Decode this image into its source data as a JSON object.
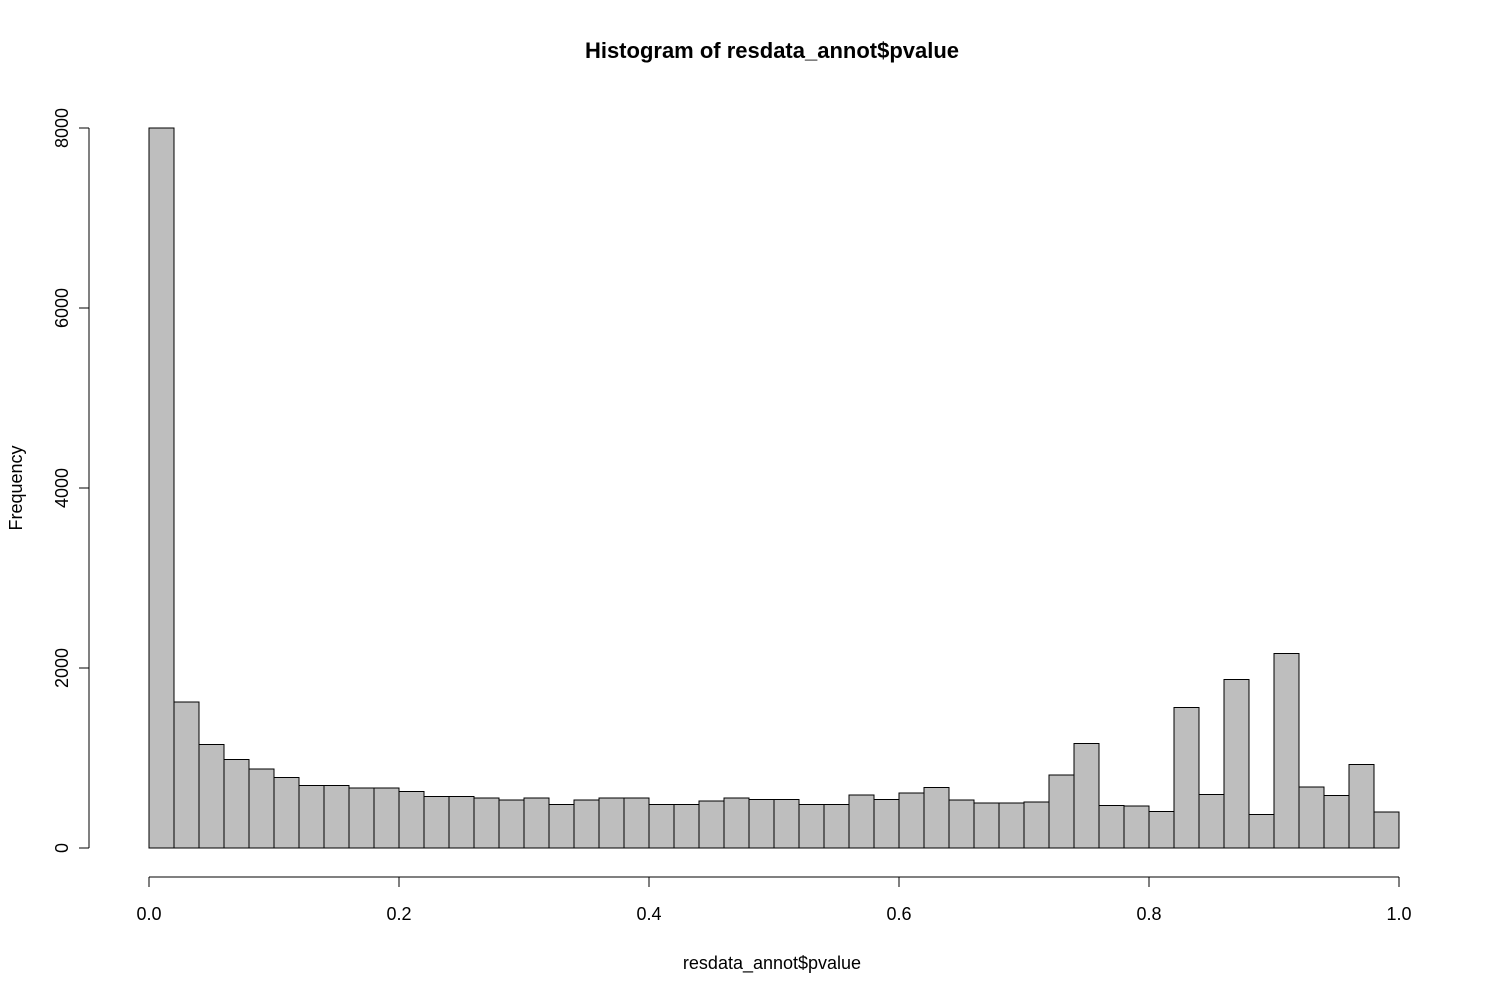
{
  "chart_data": {
    "type": "bar",
    "title": "Histogram of resdata_annot$pvalue",
    "xlabel": "resdata_annot$pvalue",
    "ylabel": "Frequency",
    "xlim": [
      0,
      1
    ],
    "ylim": [
      0,
      8000
    ],
    "bin_edges": [
      0.0,
      0.02,
      0.04,
      0.06,
      0.08,
      0.1,
      0.12,
      0.14,
      0.16,
      0.18,
      0.2,
      0.22,
      0.24,
      0.26,
      0.28,
      0.3,
      0.32,
      0.34,
      0.36,
      0.38,
      0.4,
      0.42,
      0.44,
      0.46,
      0.48,
      0.5,
      0.52,
      0.54,
      0.56,
      0.58,
      0.6,
      0.62,
      0.64,
      0.66,
      0.68,
      0.7,
      0.72,
      0.74,
      0.76,
      0.78,
      0.8,
      0.82,
      0.84,
      0.86,
      0.88,
      0.9,
      0.92,
      0.94,
      0.96,
      0.98,
      1.0
    ],
    "values": [
      8000,
      1620,
      1150,
      985,
      880,
      785,
      695,
      695,
      665,
      665,
      630,
      575,
      575,
      555,
      535,
      555,
      485,
      535,
      555,
      555,
      485,
      485,
      520,
      555,
      540,
      540,
      485,
      485,
      590,
      540,
      610,
      670,
      535,
      500,
      500,
      510,
      810,
      1160,
      475,
      465,
      405,
      1560,
      595,
      1870,
      375,
      2160,
      680,
      585,
      930,
      400
    ],
    "x_ticks": [
      0.0,
      0.2,
      0.4,
      0.6,
      0.8,
      1.0
    ],
    "x_tick_labels": [
      "0.0",
      "0.2",
      "0.4",
      "0.6",
      "0.8",
      "1.0"
    ],
    "y_ticks": [
      0,
      2000,
      4000,
      6000,
      8000
    ],
    "y_tick_labels": [
      "0",
      "2000",
      "4000",
      "6000",
      "8000"
    ],
    "grid": false,
    "colors": {
      "bar_fill": "#bebebe",
      "bar_stroke": "#000000",
      "axis": "#000000",
      "background": "#ffffff"
    }
  }
}
